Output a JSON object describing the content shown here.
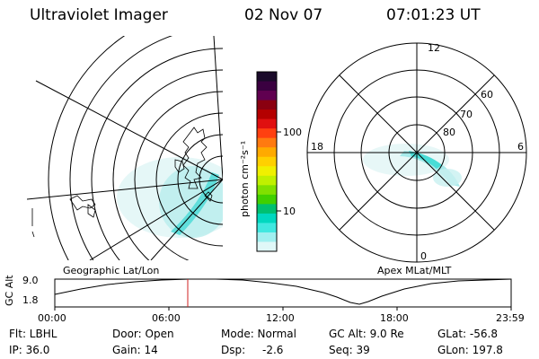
{
  "header": {
    "instrument": "Ultraviolet Imager",
    "date": "02 Nov 07",
    "time": "07:01:23 UT"
  },
  "colorbar": {
    "unit_label": "photon cm⁻²s⁻¹",
    "ticks": [
      "100",
      "10"
    ],
    "colors": [
      "#1a0a2a",
      "#3a0040",
      "#600050",
      "#8a0010",
      "#b40000",
      "#e01010",
      "#ff4010",
      "#ff7a10",
      "#ffaa00",
      "#ffd000",
      "#f0f000",
      "#c0f000",
      "#80e000",
      "#40d000",
      "#00c070",
      "#00d8c0",
      "#40e8e0",
      "#a0f0f0",
      "#e0f8f8"
    ]
  },
  "panels": {
    "left_label": "Geographic Lat/Lon",
    "right_label": "Apex MLat/MLT"
  },
  "polar": {
    "lat_labels": [
      "80",
      "70",
      "60"
    ],
    "mlt_labels": [
      "12",
      "18",
      "6",
      "0"
    ]
  },
  "timeline": {
    "y_title": "GC Alt",
    "y_ticks": [
      "9.0",
      "1.8"
    ],
    "x_ticks": [
      "00:00",
      "06:00",
      "12:00",
      "18:00",
      "23:59"
    ],
    "marker_time": "07:01"
  },
  "info": {
    "filter": "Flt: LBHL",
    "ip": "IP: 36.0",
    "door": "Door: Open",
    "gain": "Gain: 14",
    "mode": "Mode: Normal",
    "dsp_label": "Dsp:",
    "dsp_value": "-2.6",
    "gc_alt": "GC Alt: 9.0 Re",
    "seq": "Seq: 39",
    "glat": "GLat: -56.8",
    "glon": "GLon: 197.8"
  }
}
